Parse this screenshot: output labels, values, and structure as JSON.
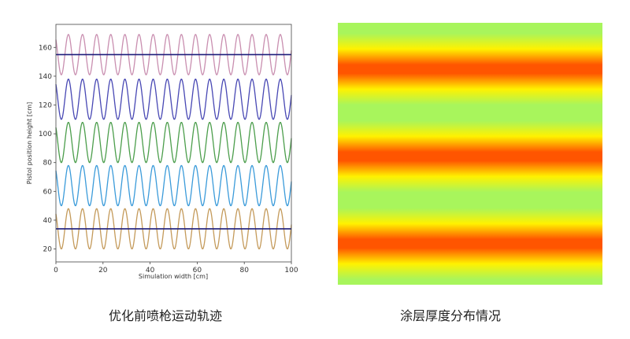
{
  "chart_data": [
    {
      "type": "line",
      "xlabel": "Simulation width [cm]",
      "ylabel": "Pistol position height [cm]",
      "xlim": [
        0,
        100
      ],
      "ylim": [
        11,
        176
      ],
      "xticks": [
        0,
        20,
        40,
        60,
        80,
        100
      ],
      "yticks": [
        20,
        40,
        60,
        80,
        100,
        120,
        140,
        160
      ],
      "grid": false,
      "series": [
        {
          "kind": "sine",
          "center": 155,
          "amplitude": 14,
          "period": 6,
          "peak_at": 5.3,
          "color": "#c98fb0"
        },
        {
          "kind": "sine",
          "center": 124,
          "amplitude": 14,
          "period": 6,
          "peak_at": 5.3,
          "color": "#4848b4"
        },
        {
          "kind": "sine",
          "center": 94,
          "amplitude": 14,
          "period": 6,
          "peak_at": 5.3,
          "color": "#4c9e4c"
        },
        {
          "kind": "sine",
          "center": 64,
          "amplitude": 14,
          "period": 6,
          "peak_at": 5.3,
          "color": "#3b9bda"
        },
        {
          "kind": "sine",
          "center": 34,
          "amplitude": 14,
          "period": 6,
          "peak_at": 5.3,
          "color": "#c49a5a"
        },
        {
          "kind": "hline",
          "y": 155,
          "color": "#1c1c7a"
        },
        {
          "kind": "hline",
          "y": 34,
          "color": "#1c1c7a"
        }
      ]
    },
    {
      "type": "heatmap",
      "orientation": "horizontal-bands",
      "high_bands": 3,
      "colors": {
        "low": "#a8f55c",
        "mid": "#fff200",
        "high": "#ff5500"
      }
    }
  ],
  "captions": {
    "left": "优化前喷枪运动轨迹",
    "right": "涂层厚度分布情况"
  }
}
